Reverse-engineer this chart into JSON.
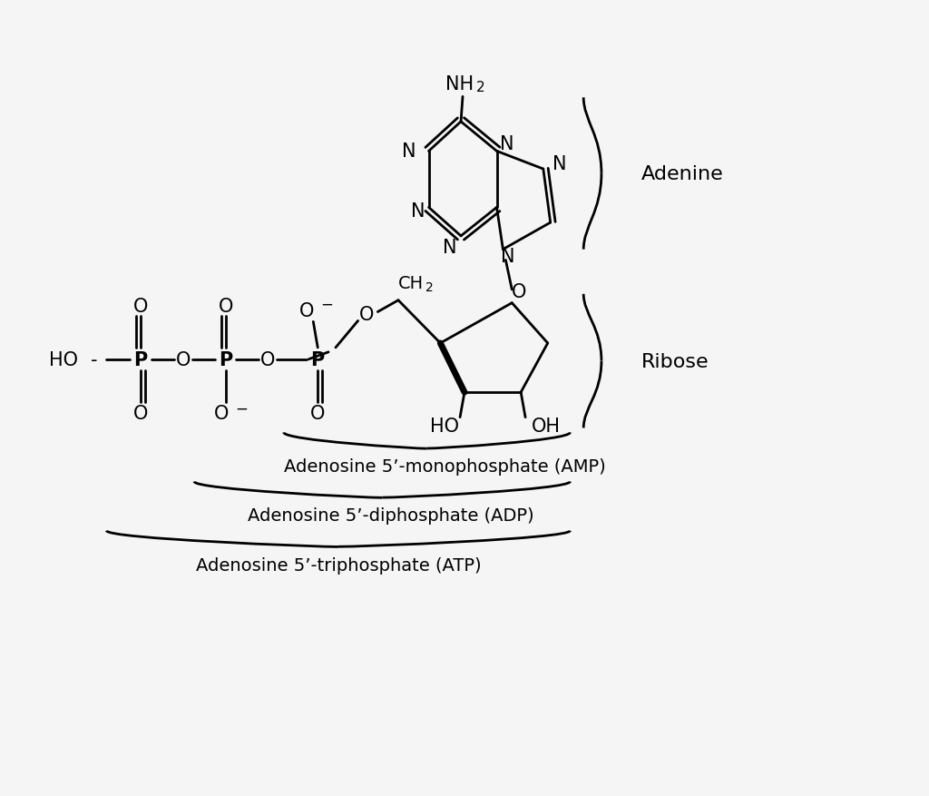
{
  "background_color": "#f5f5f5",
  "adenine_label": "Adenine",
  "ribose_label": "Ribose",
  "amp_label": "Adenosine 5’-monophosphate (AMP)",
  "adp_label": "Adenosine 5’-diphosphate (ADP)",
  "atp_label": "Adenosine 5’-triphosphate (ATP)",
  "line_color": "#000000",
  "text_color": "#000000"
}
